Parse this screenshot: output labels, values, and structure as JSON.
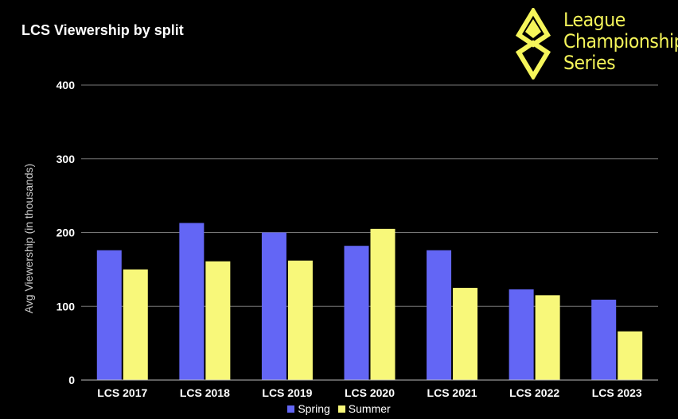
{
  "chart_data": {
    "type": "bar",
    "title": "LCS Viewership by split",
    "ylabel": "Avg Viewership (in thousands)",
    "xlabel": "",
    "categories": [
      "LCS 2017",
      "LCS 2018",
      "LCS 2019",
      "LCS 2020",
      "LCS 2021",
      "LCS 2022",
      "LCS 2023"
    ],
    "series": [
      {
        "name": "Spring",
        "color": "#6366f5",
        "values": [
          176,
          213,
          200,
          182,
          176,
          123,
          109
        ]
      },
      {
        "name": "Summer",
        "color": "#f8f87a",
        "values": [
          150,
          161,
          162,
          205,
          125,
          115,
          66
        ]
      }
    ],
    "ylim": [
      0,
      400
    ],
    "yticks": [
      "0",
      "100",
      "200",
      "300",
      "400"
    ],
    "grid": true,
    "legend_position": "bottom"
  },
  "logo": {
    "lines": [
      "League",
      "Championship",
      "Series"
    ],
    "color": "#f5f55a"
  }
}
